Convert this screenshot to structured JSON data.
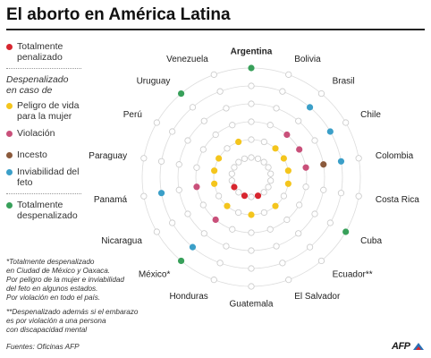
{
  "title": "El aborto en América Latina",
  "legend": {
    "items_top": [
      {
        "key": "total_pen",
        "label": "Totalmente penalizado",
        "color": "#d7262f"
      }
    ],
    "section_heading": "Despenalizado en caso de",
    "items_mid": [
      {
        "key": "vida",
        "label": "Peligro de vida para la mujer",
        "color": "#f4c51d"
      },
      {
        "key": "violacion",
        "label": "Violación",
        "color": "#c9507a"
      },
      {
        "key": "incesto",
        "label": "Incesto",
        "color": "#8b5a3c"
      },
      {
        "key": "inviabilidad",
        "label": "Inviabilidad del feto",
        "color": "#3b9fc8"
      }
    ],
    "items_bottom": [
      {
        "key": "total_desp",
        "label": "Totalmente despenalizado",
        "color": "#38a05a"
      }
    ]
  },
  "notes": [
    "*Totalmente despenalizado\nen Ciudad de México y Oaxaca.\nPor peligro de la mujer e inviabilidad\ndel feto en algunos estados.\nPor violación en todo el país.",
    "**Despenalizado además si el embarazo\nes por violación a una persona\ncon discapacidad mental"
  ],
  "source": "Fuentes: Oficinas AFP",
  "logo_text": "AFP",
  "chart_data": {
    "type": "radial-dot-matrix",
    "rings": [
      "total_pen",
      "vida",
      "violacion",
      "incesto",
      "inviabilidad",
      "total_desp"
    ],
    "countries": [
      {
        "name": "Argentina",
        "bold": true,
        "status": [
          "total_desp"
        ]
      },
      {
        "name": "Bolivia",
        "status": []
      },
      {
        "name": "Brasil",
        "status": [
          "vida",
          "violacion",
          "inviabilidad"
        ]
      },
      {
        "name": "Chile",
        "status": [
          "vida",
          "violacion",
          "inviabilidad"
        ]
      },
      {
        "name": "Colombia",
        "status": [
          "vida",
          "violacion",
          "incesto",
          "inviabilidad"
        ]
      },
      {
        "name": "Costa Rica",
        "status": [
          "vida"
        ]
      },
      {
        "name": "Cuba",
        "status": [
          "total_desp"
        ]
      },
      {
        "name": "Ecuador**",
        "status": [
          "vida"
        ]
      },
      {
        "name": "El Salvador",
        "status": [
          "total_pen"
        ]
      },
      {
        "name": "Guatemala",
        "status": [
          "vida"
        ]
      },
      {
        "name": "Honduras",
        "status": [
          "total_pen"
        ]
      },
      {
        "name": "México*",
        "status": [
          "vida",
          "violacion",
          "inviabilidad",
          "total_desp"
        ]
      },
      {
        "name": "Nicaragua",
        "status": [
          "total_pen"
        ]
      },
      {
        "name": "Panamá",
        "status": [
          "vida",
          "violacion",
          "inviabilidad"
        ]
      },
      {
        "name": "Paraguay",
        "status": [
          "vida"
        ]
      },
      {
        "name": "Perú",
        "status": [
          "vida"
        ]
      },
      {
        "name": "Uruguay",
        "status": [
          "total_desp"
        ]
      },
      {
        "name": "Venezuela",
        "status": [
          "vida"
        ]
      }
    ]
  }
}
